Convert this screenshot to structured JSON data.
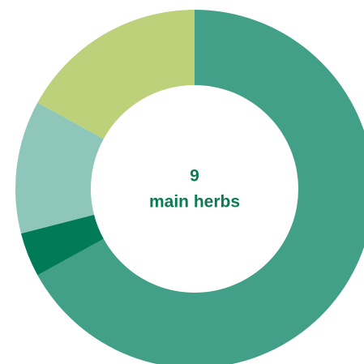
{
  "chart_data": {
    "type": "donut",
    "values": [
      67,
      4,
      12,
      17
    ],
    "colors": [
      "#43a088",
      "#017a57",
      "#8ec7b9",
      "#bdd17b"
    ],
    "center_value": 9,
    "center_text": "main herbs"
  }
}
